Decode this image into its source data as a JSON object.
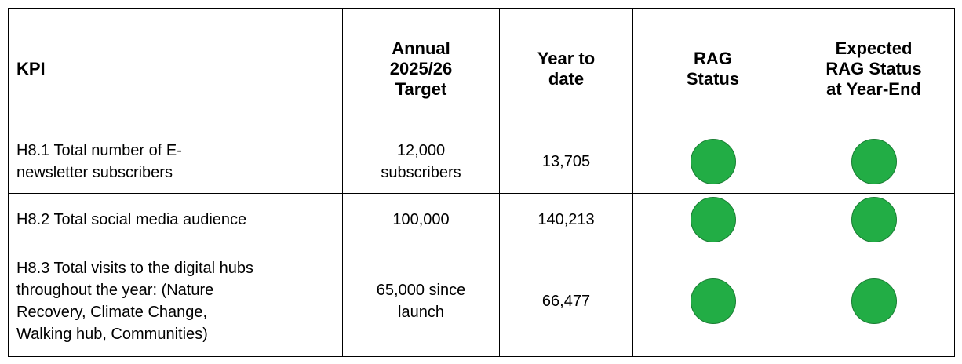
{
  "table": {
    "header": [
      [
        "KPI"
      ],
      [
        "Annual",
        "2025/26",
        "Target"
      ],
      [
        "Year to",
        "date"
      ],
      [
        "RAG",
        "Status"
      ],
      [
        "Expected",
        "RAG Status",
        "at Year-End"
      ]
    ],
    "rows": [
      {
        "kpi": [
          "H8.1 Total number of E-",
          "newsletter subscribers"
        ],
        "target": [
          "12,000",
          "subscribers"
        ],
        "ytd": [
          "13,705"
        ],
        "rag_color": "#22ad45",
        "expected_color": "#22ad45"
      },
      {
        "kpi": [
          "H8.2 Total social media audience"
        ],
        "target": [
          "100,000"
        ],
        "ytd": [
          "140,213"
        ],
        "rag_color": "#22ad45",
        "expected_color": "#22ad45"
      },
      {
        "kpi": [
          "H8.3 Total visits to the digital hubs",
          "throughout the year: (Nature",
          "Recovery, Climate Change,",
          "Walking hub, Communities)"
        ],
        "target": [
          "65,000 since",
          "launch"
        ],
        "ytd": [
          "66,477"
        ],
        "rag_color": "#22ad45",
        "expected_color": "#22ad45"
      }
    ]
  }
}
